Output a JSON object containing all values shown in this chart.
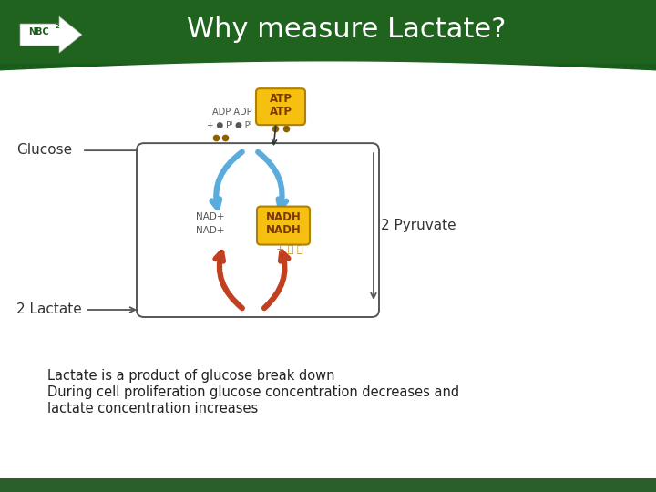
{
  "title": "Why measure Lactate?",
  "title_color": "#ffffff",
  "title_fontsize": 22,
  "header_color": "#1e6b1e",
  "body_bg": "#ffffff",
  "footer_color": "#2a5e2a",
  "body_text_line1": "Lactate is a product of glucose break down",
  "body_text_line2": "During cell proliferation glucose concentration decreases and",
  "body_text_line3": "lactate concentration increases",
  "body_text_fontsize": 10.5,
  "body_text_color": "#222222",
  "glucose_label": "Glucose",
  "lactate_label": "2 Lactate",
  "pyruvate_label": "2 Pyruvate",
  "blue_arrow_color": "#5aacdc",
  "red_arrow_color": "#c04020",
  "box_edge_color": "#555555",
  "atp_bg": "#f5c010",
  "atp_edge": "#b08000",
  "atp_text_color": "#7a3800",
  "nadh_bg": "#f5c010",
  "nadh_edge": "#b08000",
  "nadh_text_color": "#7a3800",
  "adp_text_color": "#555555",
  "nad_text_color": "#555555"
}
